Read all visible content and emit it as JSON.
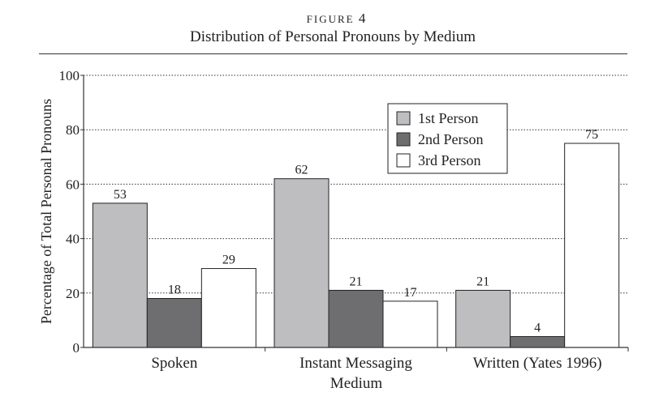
{
  "figure": {
    "label": "FIGURE",
    "number": "4"
  },
  "chart_data": {
    "type": "bar",
    "title": "Distribution of Personal Pronouns by Medium",
    "xlabel": "Medium",
    "ylabel": "Percentage of Total Personal Pronouns",
    "ylim": [
      0,
      100
    ],
    "yticks": [
      0,
      20,
      40,
      60,
      80,
      100
    ],
    "grid": "horizontal dotted",
    "legend": "top-center",
    "categories": [
      "Spoken",
      "Instant Messaging",
      "Written (Yates 1996)"
    ],
    "series": [
      {
        "name": "1st Person",
        "values": [
          53,
          62,
          21
        ],
        "color": "#bebec0"
      },
      {
        "name": "2nd Person",
        "values": [
          18,
          21,
          4
        ],
        "color": "#6e6e70"
      },
      {
        "name": "3rd Person",
        "values": [
          29,
          17,
          75
        ],
        "color": "#ffffff"
      }
    ]
  }
}
